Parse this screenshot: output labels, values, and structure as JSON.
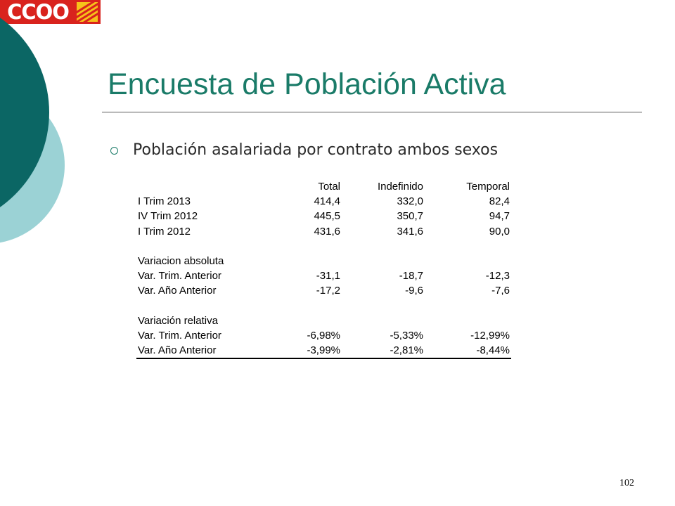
{
  "logo": {
    "text": "CCOO"
  },
  "title": "Encuesta de Población Activa",
  "bullet": "Población asalariada por contrato ambos sexos",
  "table": {
    "headers": [
      "",
      "Total",
      "Indefinido",
      "Temporal"
    ],
    "sections": [
      {
        "heading": "",
        "rows": [
          {
            "label": "I Trim 2013",
            "total": "414,4",
            "indefinido": "332,0",
            "temporal": "82,4"
          },
          {
            "label": "IV Trim 2012",
            "total": "445,5",
            "indefinido": "350,7",
            "temporal": "94,7"
          },
          {
            "label": "I Trim 2012",
            "total": "431,6",
            "indefinido": "341,6",
            "temporal": "90,0"
          }
        ]
      },
      {
        "heading": "Variacion absoluta",
        "rows": [
          {
            "label": "Var. Trim. Anterior",
            "total": "-31,1",
            "indefinido": "-18,7",
            "temporal": "-12,3"
          },
          {
            "label": "Var. Año Anterior",
            "total": "-17,2",
            "indefinido": "-9,6",
            "temporal": "-7,6"
          }
        ]
      },
      {
        "heading": "Variación relativa",
        "rows": [
          {
            "label": "Var. Trim. Anterior",
            "total": "-6,98%",
            "indefinido": "-5,33%",
            "temporal": "-12,99%"
          },
          {
            "label": "Var. Año Anterior",
            "total": "-3,99%",
            "indefinido": "-2,81%",
            "temporal": "-8,44%"
          }
        ]
      }
    ]
  },
  "page_number": "102",
  "colors": {
    "title": "#1a7b68",
    "logo_red": "#d9231d",
    "circle_dark": "#0b6664",
    "circle_light": "#9bd2d5"
  }
}
